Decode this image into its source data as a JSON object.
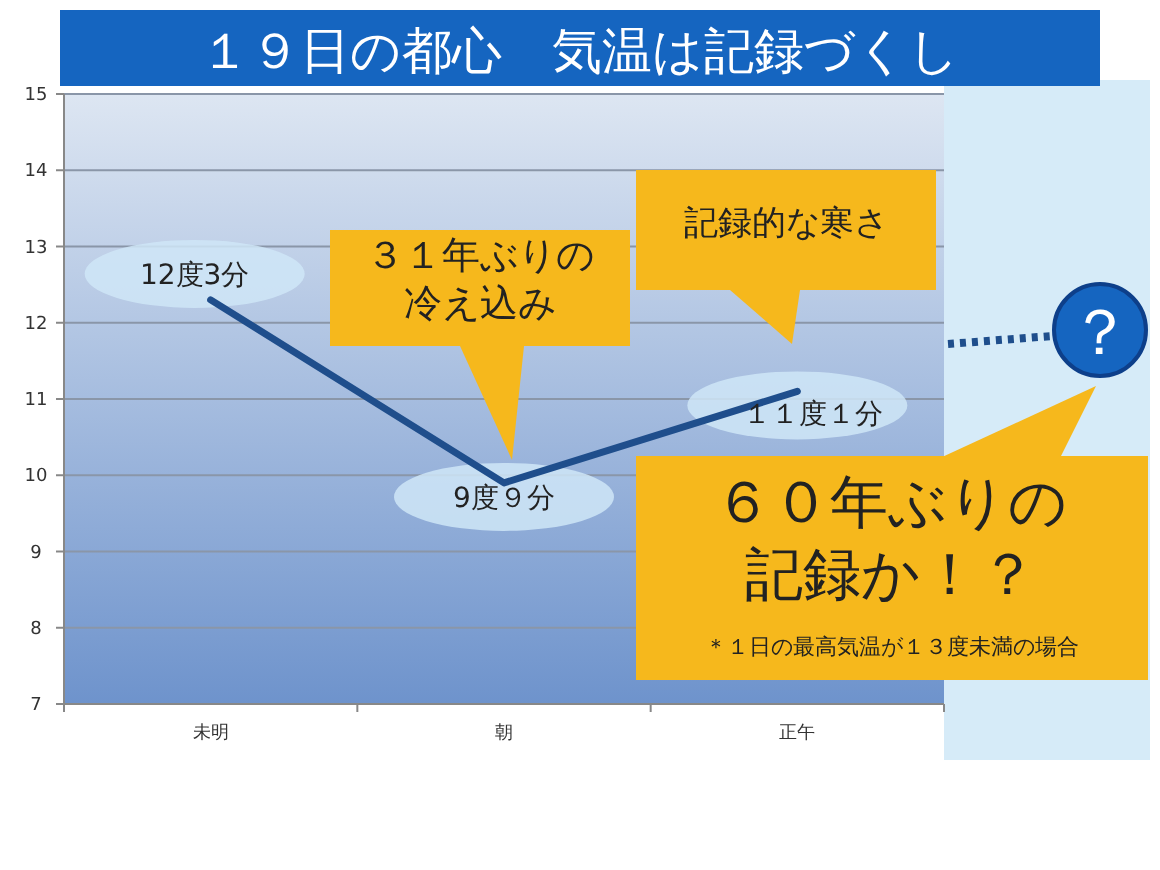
{
  "chart_data": {
    "type": "line",
    "title": "１９日の都心　気温は記録づくし",
    "categories": [
      "未明",
      "朝",
      "正午"
    ],
    "series": [
      {
        "color": "#1f4e8c",
        "values": [
          12.3,
          9.9,
          11.1
        ]
      }
    ],
    "ylim": [
      7,
      15
    ],
    "yticks": [
      7,
      8,
      9,
      10,
      11,
      12,
      13,
      14,
      15
    ],
    "grid": "y",
    "marker": "none",
    "line_style": "solid",
    "annotations": [
      "３１年ぶりの冷え込み",
      "記録的な寒さ",
      "？",
      "６０年ぶりの記録か！？",
      "＊１日の最高気温が１３度未満の場合",
      "12度3分",
      "9度９分",
      "１１度１分"
    ]
  }
}
